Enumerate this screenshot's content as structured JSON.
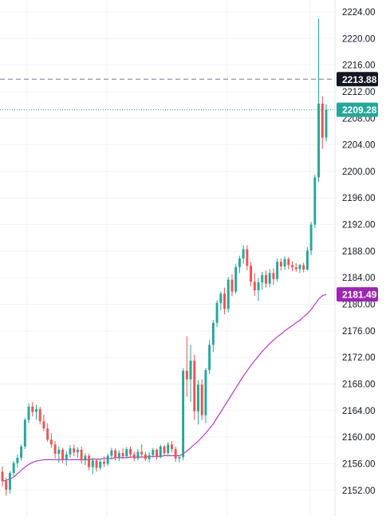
{
  "chart_data": {
    "type": "candlestick",
    "y_axis": {
      "position": "right",
      "ticks": [
        "2152.00",
        "2156.00",
        "2160.00",
        "2164.00",
        "2168.00",
        "2172.00",
        "2176.00",
        "2180.00",
        "2184.00",
        "2188.00",
        "2192.00",
        "2196.00",
        "2200.00",
        "2204.00",
        "2208.00",
        "2212.00",
        "2216.00",
        "2220.00",
        "2224.00"
      ],
      "tick_values": [
        2152,
        2156,
        2160,
        2164,
        2168,
        2172,
        2176,
        2180,
        2184,
        2188,
        2192,
        2196,
        2200,
        2204,
        2208,
        2212,
        2216,
        2220,
        2224
      ]
    },
    "grid": true,
    "colors": {
      "up": "#26a69a",
      "down": "#ef5350",
      "ma": "#b340c4",
      "crosshair_label_bg": "#131722",
      "last_price_bg": "#26a69a",
      "ma_label_bg": "#9c27b0"
    },
    "price_labels": {
      "crosshair": {
        "text": "2213.88",
        "value": 2213.88
      },
      "last_price": {
        "text": "2209.28",
        "value": 2209.28
      },
      "moving_average": {
        "text": "2181.49",
        "value": 2181.49
      }
    },
    "candles": [
      [
        2154.8,
        2155.6,
        2152.6,
        2153.4
      ],
      [
        2153.4,
        2153.9,
        2151.2,
        2152.1
      ],
      [
        2152.1,
        2154.9,
        2151.5,
        2154.6
      ],
      [
        2154.6,
        2156.4,
        2154.0,
        2156.1
      ],
      [
        2156.1,
        2157.4,
        2155.4,
        2156.9
      ],
      [
        2156.9,
        2158.9,
        2156.5,
        2158.6
      ],
      [
        2158.6,
        2162.9,
        2158.2,
        2162.6
      ],
      [
        2162.6,
        2165.1,
        2162.1,
        2164.6
      ],
      [
        2164.6,
        2165.3,
        2163.1,
        2163.8
      ],
      [
        2163.8,
        2164.9,
        2162.6,
        2164.2
      ],
      [
        2164.2,
        2164.6,
        2161.9,
        2162.4
      ],
      [
        2162.4,
        2163.4,
        2160.9,
        2161.3
      ],
      [
        2161.3,
        2162.1,
        2159.3,
        2159.6
      ],
      [
        2159.6,
        2160.6,
        2158.4,
        2158.9
      ],
      [
        2158.9,
        2159.4,
        2156.8,
        2157.5
      ],
      [
        2157.5,
        2158.6,
        2156.2,
        2158.1
      ],
      [
        2158.1,
        2158.4,
        2156.1,
        2156.6
      ],
      [
        2156.6,
        2157.9,
        2155.7,
        2157.4
      ],
      [
        2157.4,
        2158.8,
        2156.9,
        2158.3
      ],
      [
        2158.3,
        2158.9,
        2157.1,
        2157.7
      ],
      [
        2157.7,
        2158.5,
        2156.9,
        2158.1
      ],
      [
        2158.1,
        2158.6,
        2156.0,
        2156.5
      ],
      [
        2156.5,
        2157.6,
        2155.8,
        2157.2
      ],
      [
        2157.2,
        2157.5,
        2155.0,
        2155.5
      ],
      [
        2155.5,
        2156.9,
        2154.4,
        2156.5
      ],
      [
        2156.5,
        2156.8,
        2154.8,
        2155.4
      ],
      [
        2155.4,
        2156.8,
        2155.0,
        2156.3
      ],
      [
        2156.3,
        2157.1,
        2155.5,
        2156.0
      ],
      [
        2156.0,
        2157.5,
        2155.7,
        2157.2
      ],
      [
        2157.2,
        2158.4,
        2156.6,
        2158.0
      ],
      [
        2158.0,
        2158.3,
        2156.5,
        2156.9
      ],
      [
        2156.9,
        2158.0,
        2156.4,
        2157.6
      ],
      [
        2157.6,
        2158.3,
        2156.7,
        2157.1
      ],
      [
        2157.1,
        2158.5,
        2156.8,
        2158.2
      ],
      [
        2158.2,
        2158.6,
        2156.9,
        2157.4
      ],
      [
        2157.4,
        2157.8,
        2156.4,
        2156.8
      ],
      [
        2156.8,
        2158.2,
        2156.5,
        2157.8
      ],
      [
        2157.8,
        2158.9,
        2157.0,
        2157.4
      ],
      [
        2157.4,
        2157.8,
        2156.4,
        2156.7
      ],
      [
        2156.7,
        2157.7,
        2156.2,
        2157.3
      ],
      [
        2157.3,
        2158.4,
        2156.9,
        2158.1
      ],
      [
        2158.1,
        2158.3,
        2156.6,
        2157.0
      ],
      [
        2157.0,
        2158.9,
        2156.8,
        2158.6
      ],
      [
        2158.6,
        2158.8,
        2157.2,
        2157.6
      ],
      [
        2157.6,
        2159.3,
        2157.1,
        2158.9
      ],
      [
        2158.9,
        2159.4,
        2157.7,
        2158.2
      ],
      [
        2158.2,
        2158.6,
        2156.3,
        2156.8
      ],
      [
        2156.8,
        2157.3,
        2156.2,
        2157.0
      ],
      [
        2157.0,
        2170.4,
        2156.5,
        2170.0
      ],
      [
        2170.0,
        2175.2,
        2166.1,
        2168.7
      ],
      [
        2168.7,
        2173.9,
        2165.3,
        2171.5
      ],
      [
        2171.5,
        2172.4,
        2162.6,
        2163.9
      ],
      [
        2163.9,
        2168.6,
        2161.9,
        2167.9
      ],
      [
        2167.9,
        2168.7,
        2162.6,
        2163.3
      ],
      [
        2163.3,
        2170.4,
        2162.1,
        2170.1
      ],
      [
        2170.1,
        2174.6,
        2169.5,
        2173.9
      ],
      [
        2173.9,
        2177.6,
        2172.8,
        2177.2
      ],
      [
        2177.2,
        2180.6,
        2176.6,
        2180.2
      ],
      [
        2180.2,
        2181.9,
        2179.1,
        2181.6
      ],
      [
        2181.6,
        2182.5,
        2178.5,
        2179.3
      ],
      [
        2179.3,
        2184.1,
        2178.8,
        2183.7
      ],
      [
        2183.7,
        2184.5,
        2181.2,
        2181.9
      ],
      [
        2181.9,
        2186.1,
        2181.6,
        2185.6
      ],
      [
        2185.6,
        2187.3,
        2184.7,
        2186.9
      ],
      [
        2186.9,
        2188.9,
        2186.1,
        2188.3
      ],
      [
        2188.3,
        2188.9,
        2185.1,
        2185.8
      ],
      [
        2185.8,
        2186.4,
        2182.7,
        2183.4
      ],
      [
        2183.4,
        2184.7,
        2181.3,
        2182.1
      ],
      [
        2182.1,
        2183.9,
        2180.5,
        2183.3
      ],
      [
        2183.3,
        2184.9,
        2182.2,
        2184.4
      ],
      [
        2184.4,
        2185.1,
        2182.5,
        2183.1
      ],
      [
        2183.1,
        2185.3,
        2182.6,
        2184.7
      ],
      [
        2184.7,
        2185.4,
        2182.9,
        2183.8
      ],
      [
        2183.8,
        2186.9,
        2183.4,
        2186.4
      ],
      [
        2186.4,
        2186.9,
        2185.1,
        2185.7
      ],
      [
        2185.7,
        2187.2,
        2185.2,
        2186.8
      ],
      [
        2186.8,
        2187.1,
        2185.3,
        2185.9
      ],
      [
        2185.9,
        2186.5,
        2185.0,
        2185.6
      ],
      [
        2185.6,
        2186.2,
        2184.9,
        2185.3
      ],
      [
        2185.3,
        2186.1,
        2184.7,
        2185.9
      ],
      [
        2185.9,
        2186.3,
        2184.8,
        2185.2
      ],
      [
        2185.2,
        2188.6,
        2185.1,
        2188.1
      ],
      [
        2188.1,
        2192.4,
        2187.4,
        2192.0
      ],
      [
        2192.0,
        2199.5,
        2191.5,
        2199.1
      ],
      [
        2199.1,
        2223.0,
        2198.4,
        2210.2
      ],
      [
        2210.2,
        2211.3,
        2203.4,
        2205.1
      ],
      [
        2205.1,
        2210.1,
        2204.5,
        2209.28
      ]
    ],
    "ma": [
      2153.4,
      2153.5,
      2153.7,
      2154.0,
      2154.5,
      2155.0,
      2155.5,
      2155.9,
      2156.2,
      2156.4,
      2156.5,
      2156.6,
      2156.6,
      2156.6,
      2156.6,
      2156.6,
      2156.6,
      2156.6,
      2156.6,
      2156.6,
      2156.6,
      2156.6,
      2156.6,
      2156.6,
      2156.7,
      2156.7,
      2156.7,
      2156.8,
      2156.8,
      2156.8,
      2156.9,
      2156.9,
      2156.9,
      2156.9,
      2157.0,
      2157.0,
      2157.0,
      2157.0,
      2157.0,
      2157.1,
      2157.1,
      2157.1,
      2157.1,
      2157.2,
      2157.2,
      2157.2,
      2157.2,
      2157.2,
      2157.5,
      2157.9,
      2158.4,
      2158.9,
      2159.4,
      2160.0,
      2160.6,
      2161.3,
      2162.0,
      2162.9,
      2163.8,
      2164.7,
      2165.6,
      2166.5,
      2167.4,
      2168.3,
      2169.2,
      2170.0,
      2170.8,
      2171.5,
      2172.2,
      2172.9,
      2173.5,
      2174.1,
      2174.6,
      2175.1,
      2175.5,
      2176.0,
      2176.4,
      2176.8,
      2177.2,
      2177.6,
      2178.1,
      2178.6,
      2179.2,
      2180.0,
      2180.8,
      2181.3,
      2181.49
    ]
  }
}
